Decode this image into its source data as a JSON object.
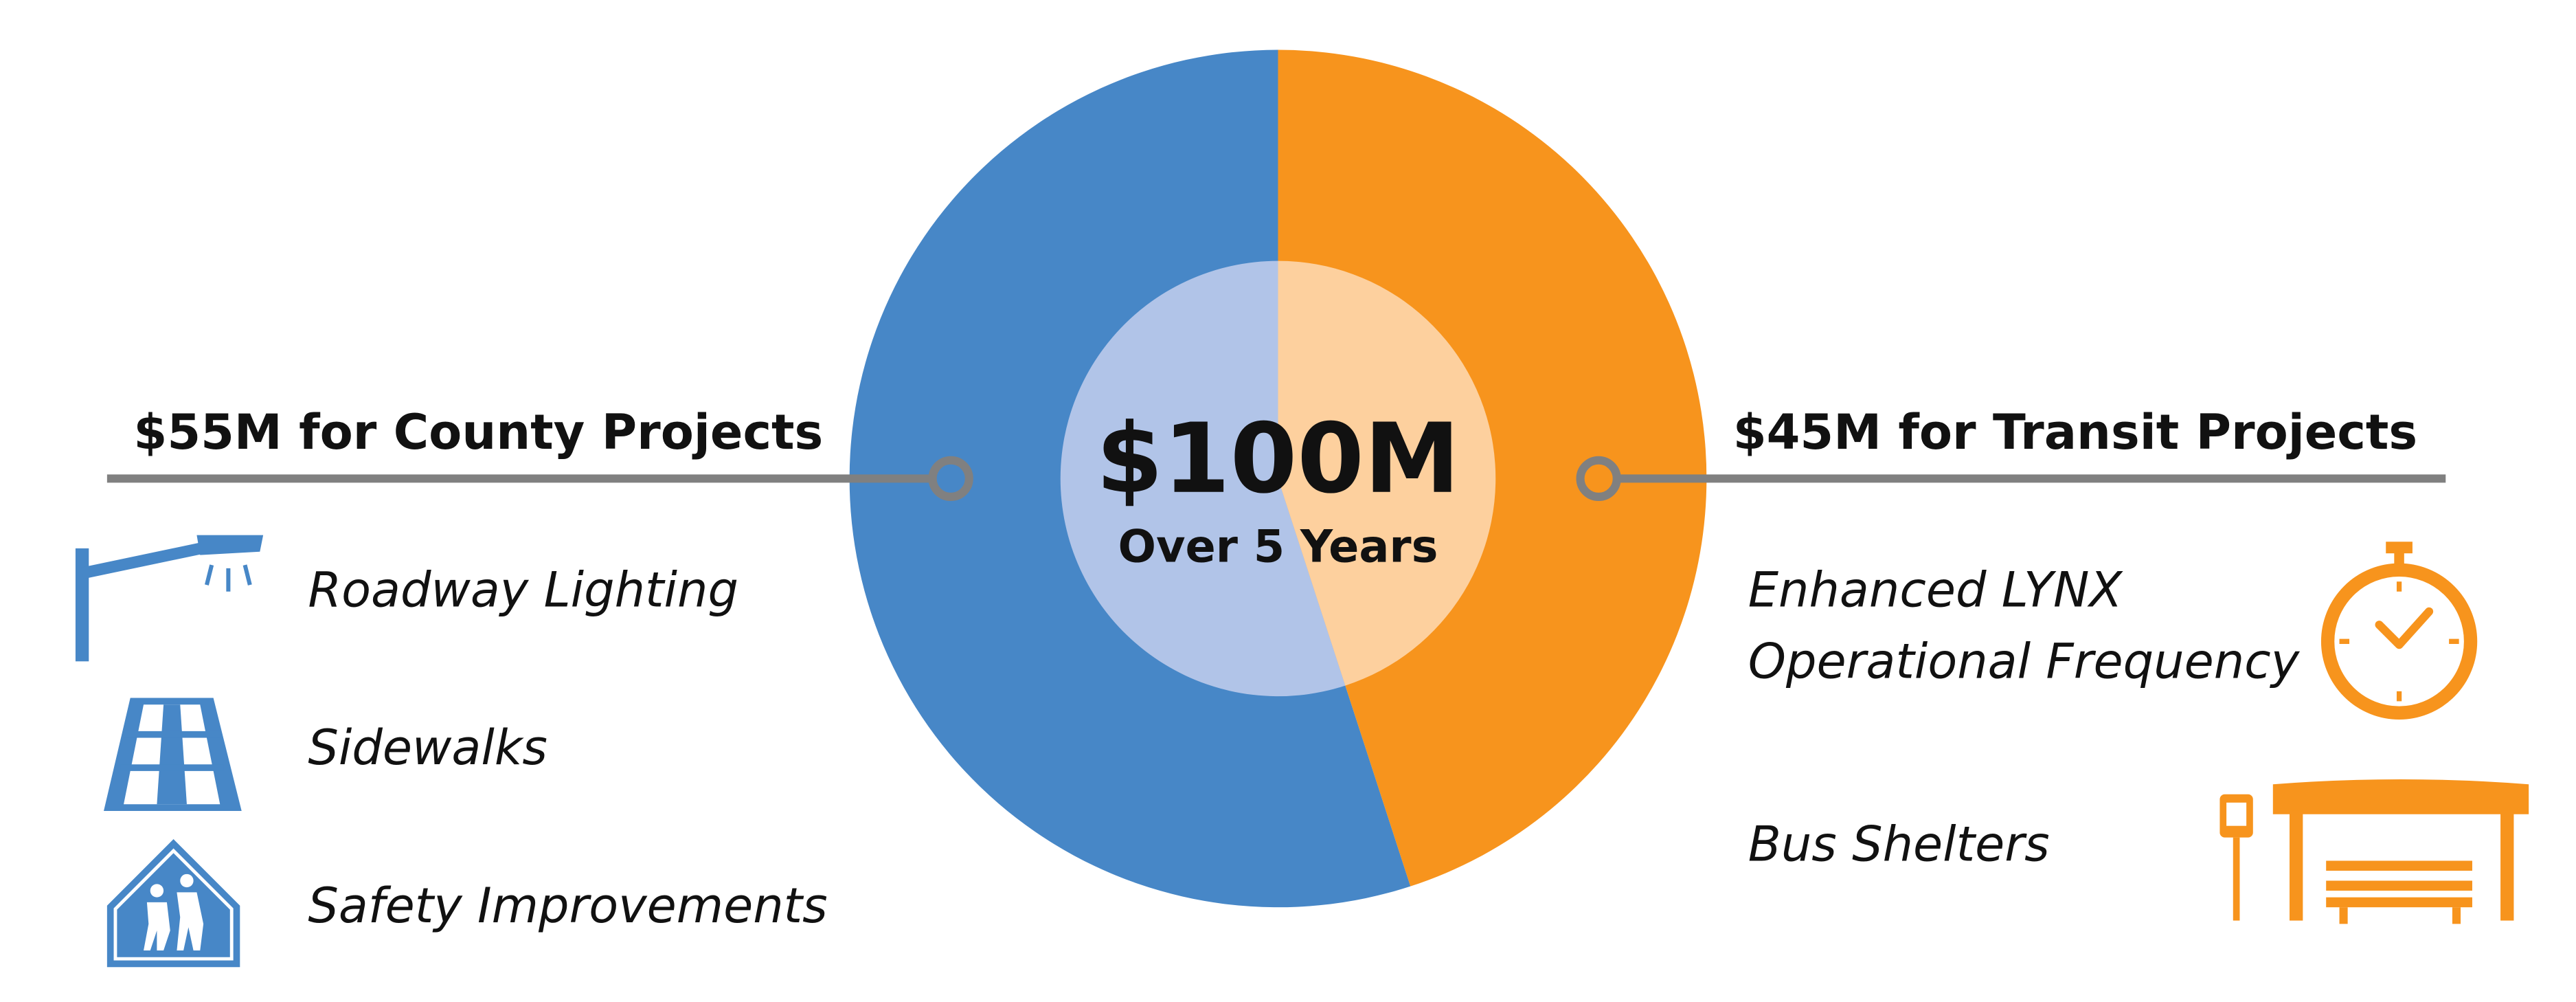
{
  "chart_data": {
    "type": "pie",
    "categories": [
      "$55M for County Projects",
      "$45M for Transit Projects"
    ],
    "values": [
      55,
      45
    ],
    "colors": [
      "#4787c7",
      "#f7941d"
    ],
    "inner_colors": [
      "#b1c4e8",
      "#fdd09e"
    ],
    "center_title": "$100M",
    "center_subtitle": "Over 5 Years",
    "left_items": [
      "Roadway Lighting",
      "Sidewalks",
      "Safety Improvements"
    ],
    "right_items": [
      [
        "Enhanced LYNX",
        "Operational Frequency"
      ],
      [
        "Bus Shelters"
      ]
    ]
  }
}
